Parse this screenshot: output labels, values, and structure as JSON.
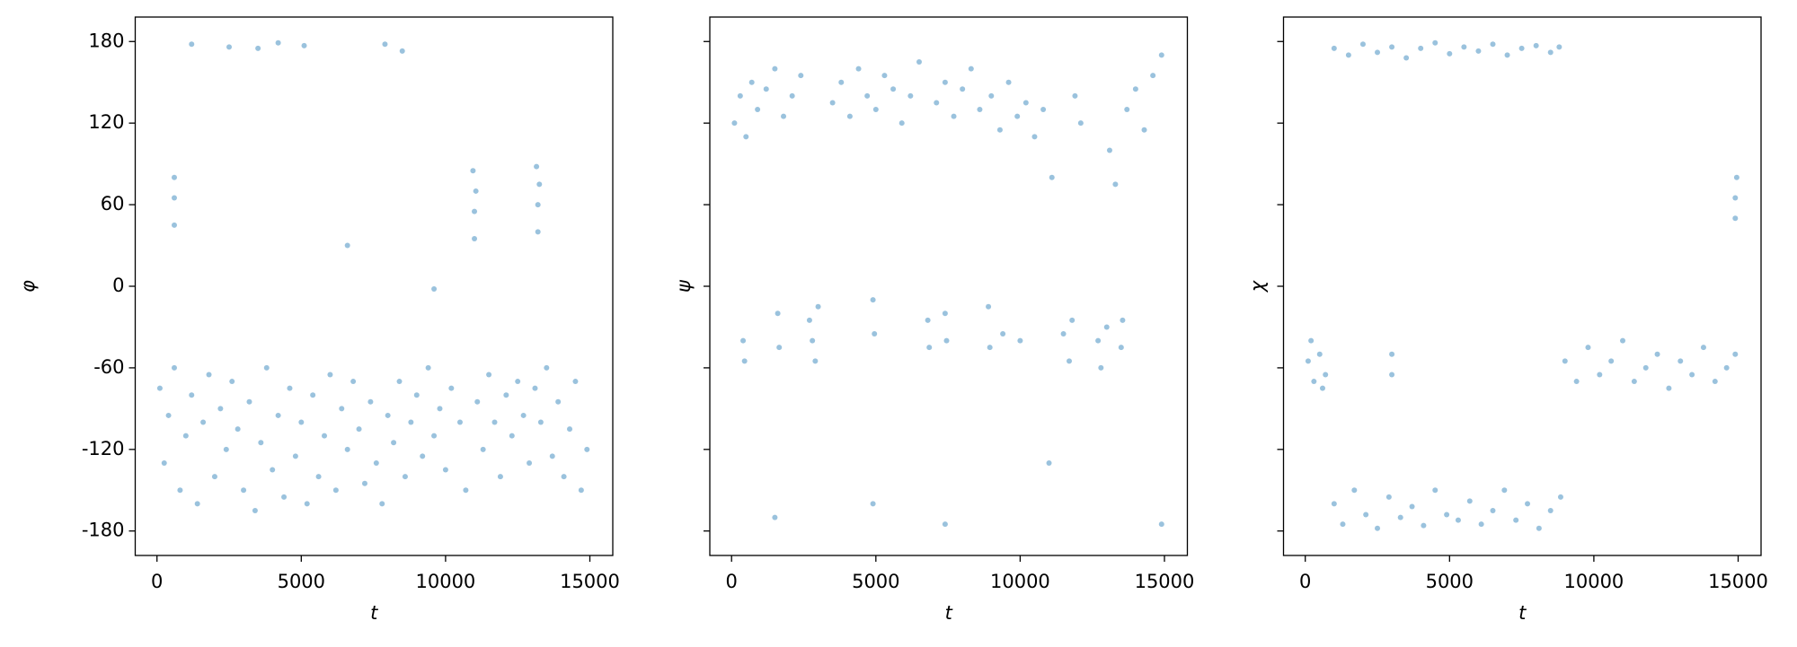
{
  "chart_data": [
    {
      "type": "scatter",
      "xlabel": "t",
      "ylabel": "φ",
      "color": "#1f77b4",
      "xlim": [
        -754,
        15794
      ],
      "ylim": [
        -198,
        198
      ],
      "xticks": [
        0,
        5000,
        10000,
        15000
      ],
      "yticks": [
        -180,
        -120,
        -60,
        0,
        60,
        120,
        180
      ],
      "ytick_labels": true,
      "x": [
        100,
        250,
        400,
        600,
        800,
        1000,
        1200,
        1400,
        1600,
        1800,
        2000,
        2200,
        2400,
        2600,
        2800,
        3000,
        3200,
        3400,
        3600,
        3800,
        4000,
        4200,
        4400,
        4600,
        4800,
        5000,
        5200,
        5400,
        5600,
        5800,
        6000,
        6200,
        6400,
        6600,
        6800,
        7000,
        7200,
        7400,
        7600,
        7800,
        8000,
        8200,
        8400,
        8600,
        8800,
        9000,
        9200,
        9400,
        9600,
        9800,
        10000,
        10200,
        10500,
        10700,
        11100,
        11300,
        11500,
        11700,
        11900,
        12100,
        12300,
        12500,
        12700,
        12900,
        13100,
        13300,
        13500,
        13700,
        13900,
        14100,
        14300,
        14500,
        14700,
        14900,
        600,
        600,
        600,
        11000,
        11000,
        11050,
        10950,
        13200,
        13200,
        13250,
        13150,
        1200,
        2500,
        3500,
        4200,
        5100,
        7900,
        8500,
        6600,
        9600
      ],
      "y": [
        -75,
        -130,
        -95,
        -60,
        -150,
        -110,
        -80,
        -160,
        -100,
        -65,
        -140,
        -90,
        -120,
        -70,
        -105,
        -150,
        -85,
        -165,
        -115,
        -60,
        -135,
        -95,
        -155,
        -75,
        -125,
        -100,
        -160,
        -80,
        -140,
        -110,
        -65,
        -150,
        -90,
        -120,
        -70,
        -105,
        -145,
        -85,
        -130,
        -160,
        -95,
        -115,
        -70,
        -140,
        -100,
        -80,
        -125,
        -60,
        -110,
        -90,
        -135,
        -75,
        -100,
        -150,
        -85,
        -120,
        -65,
        -100,
        -140,
        -80,
        -110,
        -70,
        -95,
        -130,
        -75,
        -100,
        -60,
        -125,
        -85,
        -140,
        -105,
        -70,
        -150,
        -120,
        45,
        65,
        80,
        35,
        55,
        70,
        85,
        40,
        60,
        75,
        88,
        178,
        176,
        175,
        179,
        177,
        178,
        173,
        30,
        -2
      ]
    },
    {
      "type": "scatter",
      "xlabel": "t",
      "ylabel": "ψ",
      "color": "#1f77b4",
      "xlim": [
        -754,
        15794
      ],
      "ylim": [
        -198,
        198
      ],
      "xticks": [
        0,
        5000,
        10000,
        15000
      ],
      "yticks": [
        -180,
        -120,
        -60,
        0,
        60,
        120,
        180
      ],
      "ytick_labels": false,
      "x": [
        100,
        300,
        500,
        700,
        900,
        1200,
        1500,
        1800,
        2100,
        2400,
        3500,
        3800,
        4100,
        4400,
        4700,
        5000,
        5300,
        5600,
        5900,
        6200,
        6500,
        7100,
        7400,
        7700,
        8000,
        8300,
        8600,
        9000,
        9300,
        9600,
        9900,
        10200,
        10500,
        10800,
        11100,
        11900,
        12100,
        13100,
        13300,
        13700,
        14000,
        14300,
        14600,
        14900,
        400,
        450,
        1600,
        1650,
        2700,
        2800,
        2900,
        3000,
        4900,
        4950,
        6800,
        6850,
        7400,
        7450,
        8900,
        8950,
        9400,
        10000,
        11500,
        11700,
        11800,
        12700,
        12800,
        13000,
        13500,
        13550,
        1500,
        4900,
        7400,
        11000,
        14900
      ],
      "y": [
        120,
        140,
        110,
        150,
        130,
        145,
        160,
        125,
        140,
        155,
        135,
        150,
        125,
        160,
        140,
        130,
        155,
        145,
        120,
        140,
        165,
        135,
        150,
        125,
        145,
        160,
        130,
        140,
        115,
        150,
        125,
        135,
        110,
        130,
        80,
        140,
        120,
        100,
        75,
        130,
        145,
        115,
        155,
        170,
        -40,
        -55,
        -20,
        -45,
        -25,
        -40,
        -55,
        -15,
        -10,
        -35,
        -25,
        -45,
        -20,
        -40,
        -15,
        -45,
        -35,
        -40,
        -35,
        -55,
        -25,
        -40,
        -60,
        -30,
        -45,
        -25,
        -170,
        -160,
        -175,
        -130,
        -175
      ]
    },
    {
      "type": "scatter",
      "xlabel": "t",
      "ylabel": "χ",
      "color": "#1f77b4",
      "xlim": [
        -754,
        15794
      ],
      "ylim": [
        -198,
        198
      ],
      "xticks": [
        0,
        5000,
        10000,
        15000
      ],
      "yticks": [
        -180,
        -120,
        -60,
        0,
        60,
        120,
        180
      ],
      "ytick_labels": false,
      "x": [
        100,
        300,
        500,
        700,
        200,
        600,
        1000,
        1500,
        2000,
        2500,
        3000,
        3500,
        4000,
        4500,
        5000,
        5500,
        6000,
        6500,
        7000,
        7500,
        8000,
        8500,
        8800,
        1000,
        1300,
        1700,
        2100,
        2500,
        2900,
        3300,
        3700,
        4100,
        4500,
        4900,
        5300,
        5700,
        6100,
        6500,
        6900,
        7300,
        7700,
        8100,
        8500,
        8850,
        3000,
        3000,
        9000,
        9400,
        9800,
        10200,
        10600,
        11000,
        11400,
        11800,
        12200,
        12600,
        13000,
        13400,
        13800,
        14200,
        14600,
        14900,
        14900,
        14900,
        14950
      ],
      "y": [
        -55,
        -70,
        -50,
        -65,
        -40,
        -75,
        175,
        170,
        178,
        172,
        176,
        168,
        175,
        179,
        171,
        176,
        173,
        178,
        170,
        175,
        177,
        172,
        176,
        -160,
        -175,
        -150,
        -168,
        -178,
        -155,
        -170,
        -162,
        -176,
        -150,
        -168,
        -172,
        -158,
        -175,
        -165,
        -150,
        -172,
        -160,
        -178,
        -165,
        -155,
        -50,
        -65,
        -55,
        -70,
        -45,
        -65,
        -55,
        -40,
        -70,
        -60,
        -50,
        -75,
        -55,
        -65,
        -45,
        -70,
        -60,
        -50,
        50,
        65,
        80
      ]
    }
  ]
}
